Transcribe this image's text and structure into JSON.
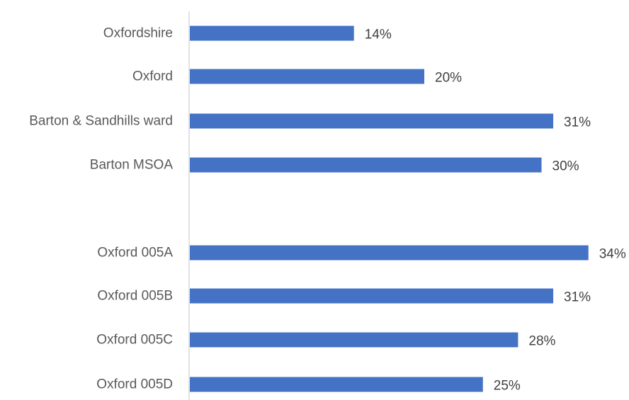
{
  "chart_data": {
    "type": "bar",
    "orientation": "horizontal",
    "categories": [
      "Oxfordshire",
      "Oxford",
      "Barton & Sandhills ward",
      "Barton MSOA",
      "",
      "Oxford 005A",
      "Oxford 005B",
      "Oxford 005C",
      "Oxford 005D"
    ],
    "values": [
      14,
      20,
      31,
      30,
      null,
      34,
      31,
      28,
      25
    ],
    "data_labels": [
      "14%",
      "20%",
      "31%",
      "30%",
      "",
      "34%",
      "31%",
      "28%",
      "25%"
    ],
    "unit": "%",
    "title": "",
    "xlabel": "",
    "ylabel": "",
    "xlim": [
      0,
      34
    ],
    "grid": false,
    "legend": "none",
    "bar_color": "#4472C4",
    "axis_color": "#D9D9D9"
  }
}
